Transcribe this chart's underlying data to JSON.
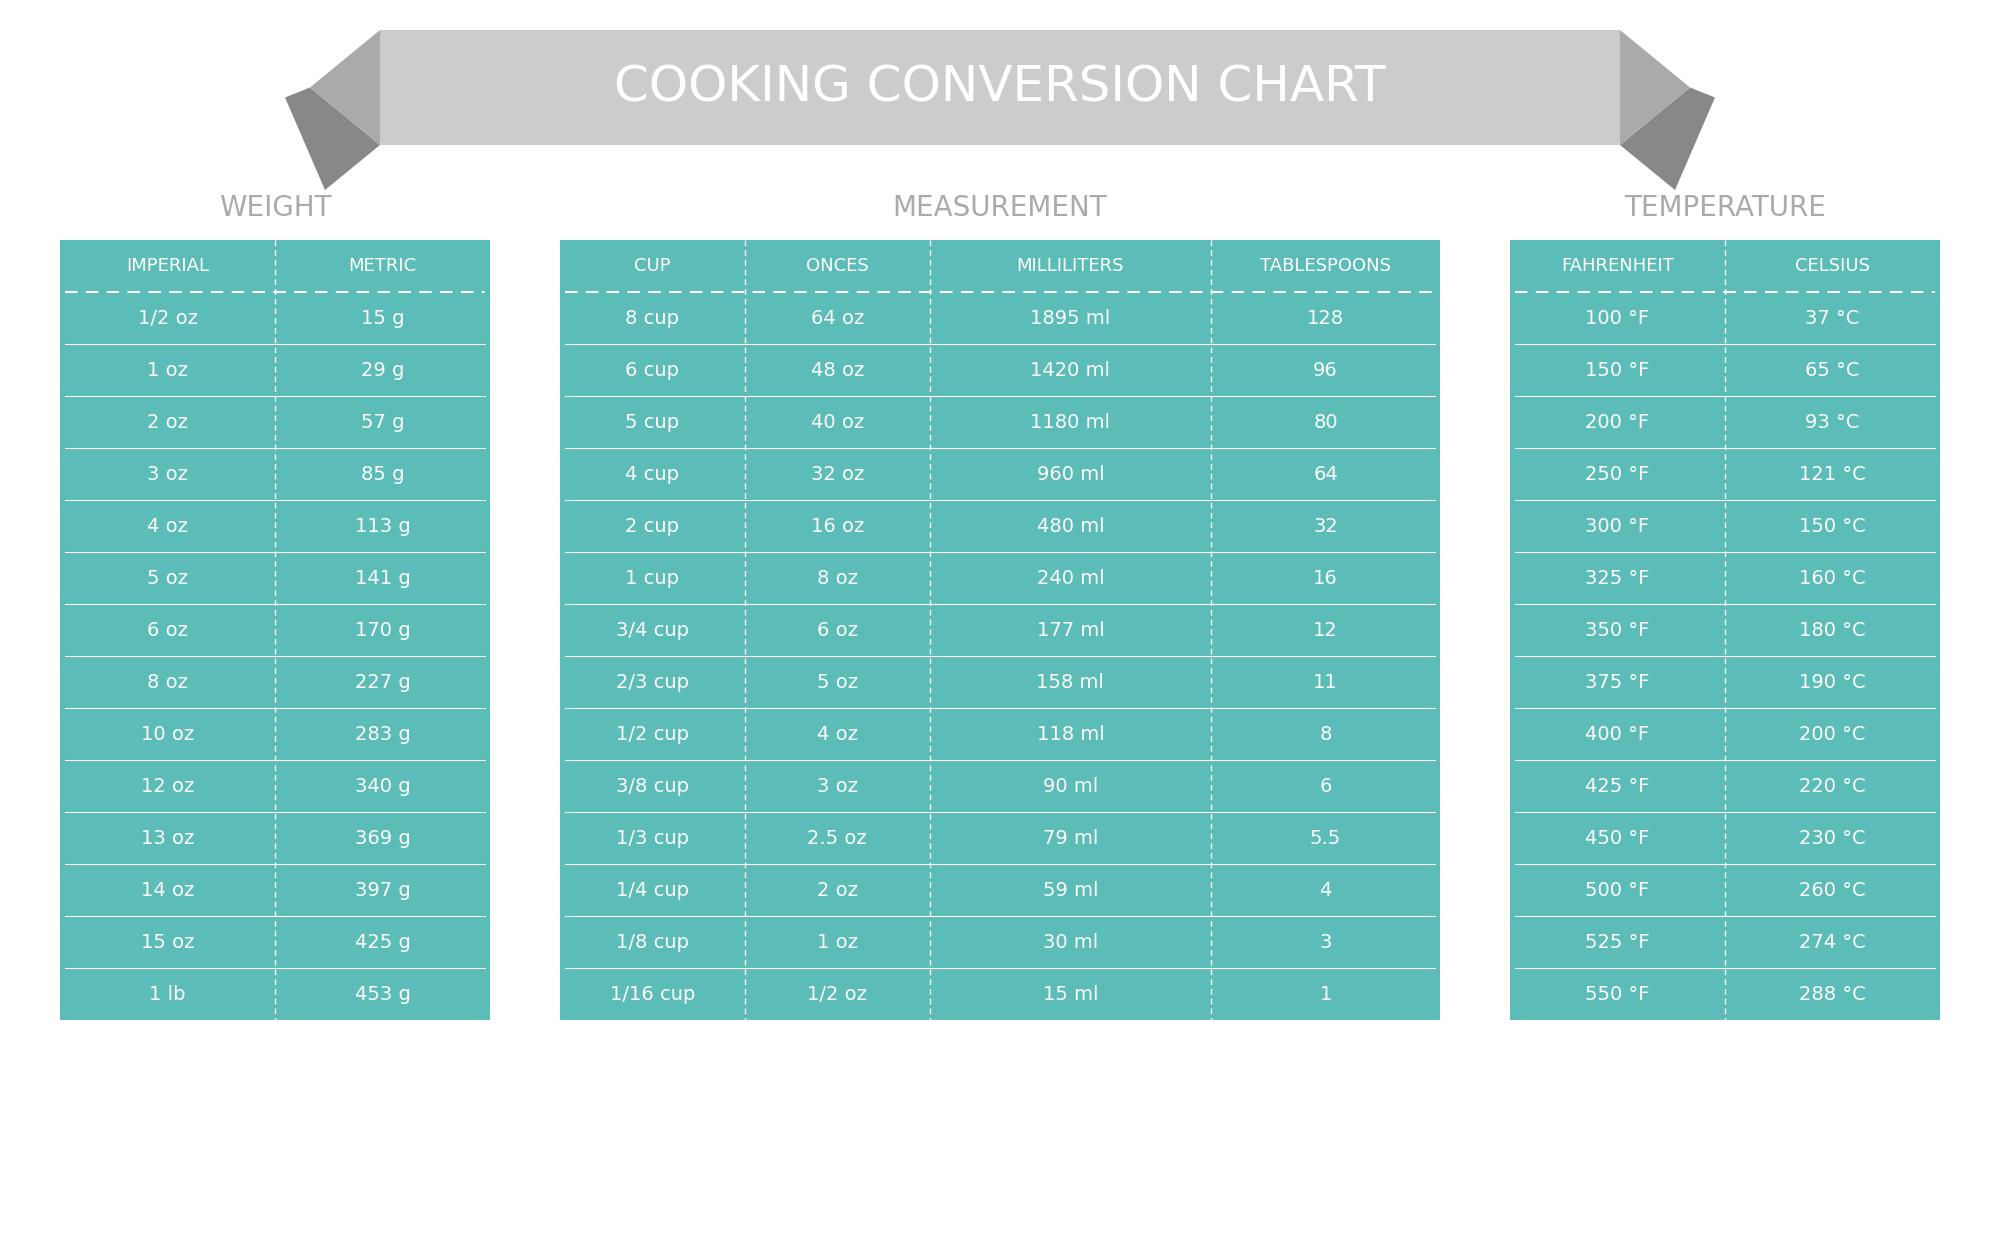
{
  "title": "COOKING CONVERSION CHART",
  "bg_color": "#ffffff",
  "table_bg": "#5bbcb8",
  "text_color": "#ffffff",
  "section_label_color": "#aaaaaa",
  "banner_color": "#cccccc",
  "banner_dark": "#aaaaaa",
  "banner_darker": "#888888",
  "weight_section": {
    "label": "WEIGHT",
    "headers": [
      "IMPERIAL",
      "METRIC"
    ],
    "rows": [
      [
        "1/2 oz",
        "15 g"
      ],
      [
        "1 oz",
        "29 g"
      ],
      [
        "2 oz",
        "57 g"
      ],
      [
        "3 oz",
        "85 g"
      ],
      [
        "4 oz",
        "113 g"
      ],
      [
        "5 oz",
        "141 g"
      ],
      [
        "6 oz",
        "170 g"
      ],
      [
        "8 oz",
        "227 g"
      ],
      [
        "10 oz",
        "283 g"
      ],
      [
        "12 oz",
        "340 g"
      ],
      [
        "13 oz",
        "369 g"
      ],
      [
        "14 oz",
        "397 g"
      ],
      [
        "15 oz",
        "425 g"
      ],
      [
        "1 lb",
        "453 g"
      ]
    ]
  },
  "measurement_section": {
    "label": "MEASUREMENT",
    "headers": [
      "CUP",
      "ONCES",
      "MILLILITERS",
      "TABLESPOONS"
    ],
    "rows": [
      [
        "8 cup",
        "64 oz",
        "1895 ml",
        "128"
      ],
      [
        "6 cup",
        "48 oz",
        "1420 ml",
        "96"
      ],
      [
        "5 cup",
        "40 oz",
        "1180 ml",
        "80"
      ],
      [
        "4 cup",
        "32 oz",
        "960 ml",
        "64"
      ],
      [
        "2 cup",
        "16 oz",
        "480 ml",
        "32"
      ],
      [
        "1 cup",
        "8 oz",
        "240 ml",
        "16"
      ],
      [
        "3/4 cup",
        "6 oz",
        "177 ml",
        "12"
      ],
      [
        "2/3 cup",
        "5 oz",
        "158 ml",
        "11"
      ],
      [
        "1/2 cup",
        "4 oz",
        "118 ml",
        "8"
      ],
      [
        "3/8 cup",
        "3 oz",
        "90 ml",
        "6"
      ],
      [
        "1/3 cup",
        "2.5 oz",
        "79 ml",
        "5.5"
      ],
      [
        "1/4 cup",
        "2 oz",
        "59 ml",
        "4"
      ],
      [
        "1/8 cup",
        "1 oz",
        "30 ml",
        "3"
      ],
      [
        "1/16 cup",
        "1/2 oz",
        "15 ml",
        "1"
      ]
    ]
  },
  "temperature_section": {
    "label": "TEMPERATURE",
    "headers": [
      "FAHRENHEIT",
      "CELSIUS"
    ],
    "rows": [
      [
        "100 °F",
        "37 °C"
      ],
      [
        "150 °F",
        "65 °C"
      ],
      [
        "200 °F",
        "93 °C"
      ],
      [
        "250 °F",
        "121 °C"
      ],
      [
        "300 °F",
        "150 °C"
      ],
      [
        "325 °F",
        "160 °C"
      ],
      [
        "350 °F",
        "180 °C"
      ],
      [
        "375 °F",
        "190 °C"
      ],
      [
        "400 °F",
        "200 °C"
      ],
      [
        "425 °F",
        "220 °C"
      ],
      [
        "450 °F",
        "230 °C"
      ],
      [
        "500 °F",
        "260 °C"
      ],
      [
        "525 °F",
        "274 °C"
      ],
      [
        "550 °F",
        "288 °C"
      ]
    ]
  }
}
